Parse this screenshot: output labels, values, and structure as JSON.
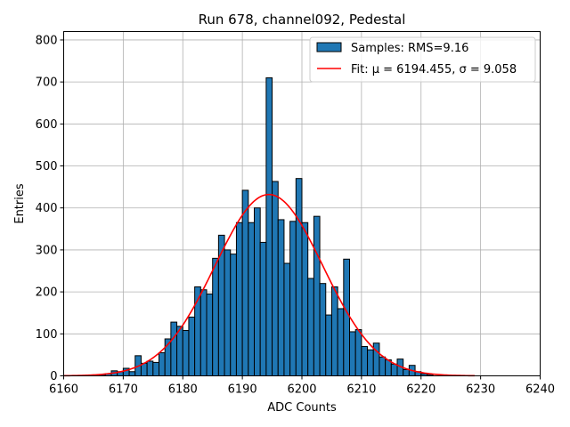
{
  "chart_data": {
    "type": "bar",
    "title": "Run 678, channel092, Pedestal",
    "xlabel": "ADC Counts",
    "ylabel": "Entries",
    "xlim": [
      6160,
      6240
    ],
    "ylim": [
      0,
      820
    ],
    "xticks": [
      6160,
      6170,
      6180,
      6190,
      6200,
      6210,
      6220,
      6230,
      6240
    ],
    "yticks": [
      0,
      100,
      200,
      300,
      400,
      500,
      600,
      700,
      800
    ],
    "grid": true,
    "legend_position": "top-right",
    "bin_width": 1,
    "bins": [
      {
        "x": 6166,
        "y": 3
      },
      {
        "x": 6167,
        "y": 5
      },
      {
        "x": 6168,
        "y": 12
      },
      {
        "x": 6169,
        "y": 10
      },
      {
        "x": 6170,
        "y": 18
      },
      {
        "x": 6171,
        "y": 10
      },
      {
        "x": 6172,
        "y": 48
      },
      {
        "x": 6173,
        "y": 30
      },
      {
        "x": 6174,
        "y": 35
      },
      {
        "x": 6175,
        "y": 32
      },
      {
        "x": 6176,
        "y": 55
      },
      {
        "x": 6177,
        "y": 88
      },
      {
        "x": 6178,
        "y": 128
      },
      {
        "x": 6179,
        "y": 118
      },
      {
        "x": 6180,
        "y": 108
      },
      {
        "x": 6181,
        "y": 140
      },
      {
        "x": 6182,
        "y": 212
      },
      {
        "x": 6183,
        "y": 205
      },
      {
        "x": 6184,
        "y": 195
      },
      {
        "x": 6185,
        "y": 280
      },
      {
        "x": 6186,
        "y": 335
      },
      {
        "x": 6187,
        "y": 300
      },
      {
        "x": 6188,
        "y": 290
      },
      {
        "x": 6189,
        "y": 365
      },
      {
        "x": 6190,
        "y": 442
      },
      {
        "x": 6191,
        "y": 365
      },
      {
        "x": 6192,
        "y": 400
      },
      {
        "x": 6193,
        "y": 318
      },
      {
        "x": 6194,
        "y": 710
      },
      {
        "x": 6195,
        "y": 463
      },
      {
        "x": 6196,
        "y": 372
      },
      {
        "x": 6197,
        "y": 268
      },
      {
        "x": 6198,
        "y": 368
      },
      {
        "x": 6199,
        "y": 470
      },
      {
        "x": 6200,
        "y": 365
      },
      {
        "x": 6201,
        "y": 232
      },
      {
        "x": 6202,
        "y": 380
      },
      {
        "x": 6203,
        "y": 220
      },
      {
        "x": 6204,
        "y": 145
      },
      {
        "x": 6205,
        "y": 212
      },
      {
        "x": 6206,
        "y": 160
      },
      {
        "x": 6207,
        "y": 278
      },
      {
        "x": 6208,
        "y": 105
      },
      {
        "x": 6209,
        "y": 110
      },
      {
        "x": 6210,
        "y": 70
      },
      {
        "x": 6211,
        "y": 62
      },
      {
        "x": 6212,
        "y": 78
      },
      {
        "x": 6213,
        "y": 45
      },
      {
        "x": 6214,
        "y": 38
      },
      {
        "x": 6215,
        "y": 28
      },
      {
        "x": 6216,
        "y": 40
      },
      {
        "x": 6217,
        "y": 15
      },
      {
        "x": 6218,
        "y": 25
      },
      {
        "x": 6219,
        "y": 10
      },
      {
        "x": 6220,
        "y": 5
      },
      {
        "x": 6221,
        "y": 3
      }
    ],
    "series": [
      {
        "name": "Samples: RMS=9.16",
        "kind": "histogram",
        "color": "#1f77b4",
        "edge_color": "#000000"
      },
      {
        "name": "Fit: μ = 6194.455, σ = 9.058",
        "kind": "gaussian-fit",
        "color": "#ff0000",
        "mu": 6194.455,
        "sigma": 9.058,
        "amplitude": 432,
        "x_range": [
          6160,
          6229
        ]
      }
    ]
  }
}
